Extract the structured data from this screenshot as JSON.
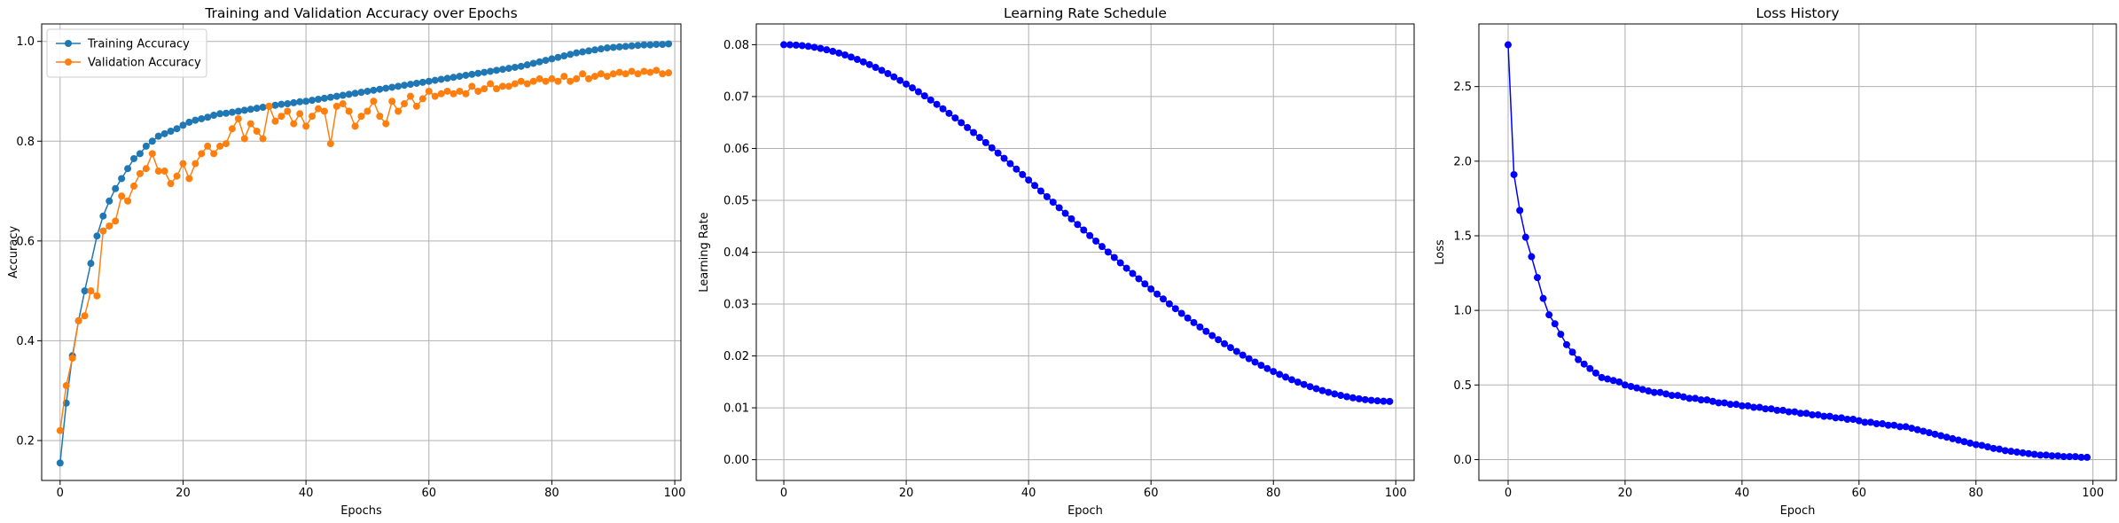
{
  "chart_data": [
    {
      "type": "line",
      "title": "Training and Validation Accuracy over Epochs",
      "xlabel": "Epochs",
      "ylabel": "Accuracy",
      "xlim": [
        -3,
        101
      ],
      "ylim": [
        0.12,
        1.035
      ],
      "xticks": [
        0,
        20,
        40,
        60,
        80,
        100
      ],
      "yticks": [
        0.2,
        0.4,
        0.6,
        0.8,
        1.0
      ],
      "xtick_labels": [
        "0",
        "20",
        "40",
        "60",
        "80",
        "100"
      ],
      "ytick_labels": [
        "0.2",
        "0.4",
        "0.6",
        "0.8",
        "1.0"
      ],
      "grid": true,
      "legend": "upper-left",
      "markers": true,
      "series": [
        {
          "name": "Training Accuracy",
          "color": "#1f77b4",
          "x": [
            0,
            1,
            2,
            3,
            4,
            5,
            6,
            7,
            8,
            9,
            10,
            11,
            12,
            13,
            14,
            15,
            16,
            17,
            18,
            19,
            20,
            21,
            22,
            23,
            24,
            25,
            26,
            27,
            28,
            29,
            30,
            31,
            32,
            33,
            34,
            35,
            36,
            37,
            38,
            39,
            40,
            41,
            42,
            43,
            44,
            45,
            46,
            47,
            48,
            49,
            50,
            51,
            52,
            53,
            54,
            55,
            56,
            57,
            58,
            59,
            60,
            61,
            62,
            63,
            64,
            65,
            66,
            67,
            68,
            69,
            70,
            71,
            72,
            73,
            74,
            75,
            76,
            77,
            78,
            79,
            80,
            81,
            82,
            83,
            84,
            85,
            86,
            87,
            88,
            89,
            90,
            91,
            92,
            93,
            94,
            95,
            96,
            97,
            98,
            99
          ],
          "values": [
            0.155,
            0.275,
            0.37,
            0.44,
            0.5,
            0.555,
            0.61,
            0.65,
            0.68,
            0.705,
            0.725,
            0.745,
            0.765,
            0.775,
            0.79,
            0.8,
            0.81,
            0.815,
            0.82,
            0.825,
            0.832,
            0.838,
            0.842,
            0.845,
            0.848,
            0.852,
            0.855,
            0.856,
            0.858,
            0.86,
            0.862,
            0.864,
            0.866,
            0.868,
            0.87,
            0.872,
            0.874,
            0.875,
            0.877,
            0.879,
            0.88,
            0.882,
            0.884,
            0.886,
            0.888,
            0.89,
            0.892,
            0.894,
            0.896,
            0.898,
            0.9,
            0.902,
            0.904,
            0.906,
            0.908,
            0.91,
            0.912,
            0.914,
            0.916,
            0.918,
            0.92,
            0.922,
            0.924,
            0.926,
            0.928,
            0.93,
            0.932,
            0.934,
            0.936,
            0.938,
            0.94,
            0.942,
            0.944,
            0.946,
            0.948,
            0.95,
            0.953,
            0.956,
            0.959,
            0.962,
            0.965,
            0.968,
            0.971,
            0.974,
            0.977,
            0.979,
            0.981,
            0.983,
            0.985,
            0.987,
            0.988,
            0.989,
            0.99,
            0.991,
            0.992,
            0.993,
            0.993,
            0.994,
            0.994,
            0.995
          ]
        },
        {
          "name": "Validation Accuracy",
          "color": "#ff7f0e",
          "x": [
            0,
            1,
            2,
            3,
            4,
            5,
            6,
            7,
            8,
            9,
            10,
            11,
            12,
            13,
            14,
            15,
            16,
            17,
            18,
            19,
            20,
            21,
            22,
            23,
            24,
            25,
            26,
            27,
            28,
            29,
            30,
            31,
            32,
            33,
            34,
            35,
            36,
            37,
            38,
            39,
            40,
            41,
            42,
            43,
            44,
            45,
            46,
            47,
            48,
            49,
            50,
            51,
            52,
            53,
            54,
            55,
            56,
            57,
            58,
            59,
            60,
            61,
            62,
            63,
            64,
            65,
            66,
            67,
            68,
            69,
            70,
            71,
            72,
            73,
            74,
            75,
            76,
            77,
            78,
            79,
            80,
            81,
            82,
            83,
            84,
            85,
            86,
            87,
            88,
            89,
            90,
            91,
            92,
            93,
            94,
            95,
            96,
            97,
            98,
            99
          ],
          "values": [
            0.22,
            0.31,
            0.365,
            0.44,
            0.45,
            0.5,
            0.49,
            0.62,
            0.63,
            0.64,
            0.69,
            0.68,
            0.71,
            0.735,
            0.745,
            0.775,
            0.74,
            0.74,
            0.715,
            0.73,
            0.755,
            0.725,
            0.755,
            0.775,
            0.79,
            0.775,
            0.79,
            0.795,
            0.825,
            0.845,
            0.805,
            0.835,
            0.82,
            0.805,
            0.87,
            0.84,
            0.85,
            0.86,
            0.835,
            0.855,
            0.83,
            0.85,
            0.865,
            0.86,
            0.795,
            0.87,
            0.875,
            0.86,
            0.83,
            0.85,
            0.86,
            0.88,
            0.85,
            0.835,
            0.88,
            0.86,
            0.875,
            0.89,
            0.87,
            0.885,
            0.9,
            0.89,
            0.895,
            0.9,
            0.895,
            0.9,
            0.895,
            0.91,
            0.9,
            0.905,
            0.915,
            0.905,
            0.91,
            0.91,
            0.915,
            0.92,
            0.915,
            0.92,
            0.925,
            0.92,
            0.925,
            0.92,
            0.93,
            0.92,
            0.925,
            0.935,
            0.925,
            0.93,
            0.935,
            0.93,
            0.935,
            0.938,
            0.935,
            0.94,
            0.935,
            0.94,
            0.938,
            0.942,
            0.935,
            0.937
          ]
        }
      ]
    },
    {
      "type": "line",
      "title": "Learning Rate Schedule",
      "xlabel": "Epoch",
      "ylabel": "Learning Rate",
      "xlim": [
        -4.5,
        103
      ],
      "ylim": [
        -0.004,
        0.084
      ],
      "xticks": [
        0,
        20,
        40,
        60,
        80,
        100
      ],
      "yticks": [
        0.0,
        0.01,
        0.02,
        0.03,
        0.04,
        0.05,
        0.06,
        0.07,
        0.08
      ],
      "xtick_labels": [
        "0",
        "20",
        "40",
        "60",
        "80",
        "100"
      ],
      "ytick_labels": [
        "0.00",
        "0.01",
        "0.02",
        "0.03",
        "0.04",
        "0.05",
        "0.06",
        "0.07",
        "0.08"
      ],
      "grid": true,
      "markers": true,
      "series": [
        {
          "color": "#0000ff",
          "x": [
            0,
            1,
            2,
            3,
            4,
            5,
            6,
            7,
            8,
            9,
            10,
            11,
            12,
            13,
            14,
            15,
            16,
            17,
            18,
            19,
            20,
            21,
            22,
            23,
            24,
            25,
            26,
            27,
            28,
            29,
            30,
            31,
            32,
            33,
            34,
            35,
            36,
            37,
            38,
            39,
            40,
            41,
            42,
            43,
            44,
            45,
            46,
            47,
            48,
            49,
            50,
            51,
            52,
            53,
            54,
            55,
            56,
            57,
            58,
            59,
            60,
            61,
            62,
            63,
            64,
            65,
            66,
            67,
            68,
            69,
            70,
            71,
            72,
            73,
            74,
            75,
            76,
            77,
            78,
            79,
            80,
            81,
            82,
            83,
            84,
            85,
            86,
            87,
            88,
            89,
            90,
            91,
            92,
            93,
            94,
            95,
            96,
            97,
            98,
            99
          ],
          "values": [
            0.08,
            0.07998,
            0.07992,
            0.07982,
            0.07968,
            0.0795,
            0.07928,
            0.07902,
            0.07872,
            0.07839,
            0.07802,
            0.07761,
            0.07716,
            0.07668,
            0.07617,
            0.07562,
            0.07504,
            0.07443,
            0.07378,
            0.07311,
            0.07241,
            0.07168,
            0.07092,
            0.07014,
            0.06933,
            0.0685,
            0.06764,
            0.06677,
            0.06587,
            0.06496,
            0.06402,
            0.06307,
            0.0621,
            0.06112,
            0.06012,
            0.05911,
            0.05809,
            0.05706,
            0.05602,
            0.05497,
            0.05391,
            0.05285,
            0.05178,
            0.05071,
            0.04964,
            0.04857,
            0.04749,
            0.04642,
            0.04534,
            0.04427,
            0.0432,
            0.04214,
            0.04108,
            0.04003,
            0.03898,
            0.03794,
            0.03691,
            0.03589,
            0.03488,
            0.03389,
            0.0329,
            0.03193,
            0.03098,
            0.03004,
            0.02911,
            0.0282,
            0.02731,
            0.02643,
            0.02558,
            0.02474,
            0.02392,
            0.02313,
            0.02235,
            0.0216,
            0.02087,
            0.02016,
            0.01948,
            0.01882,
            0.01819,
            0.01758,
            0.017,
            0.01645,
            0.01592,
            0.01542,
            0.01494,
            0.0145,
            0.01408,
            0.01369,
            0.01332,
            0.01299,
            0.01268,
            0.0124,
            0.01215,
            0.01193,
            0.01174,
            0.01158,
            0.01145,
            0.01135,
            0.01127,
            0.01123
          ]
        }
      ]
    },
    {
      "type": "line",
      "title": "Loss History",
      "xlabel": "Epoch",
      "ylabel": "Loss",
      "xlim": [
        -5,
        104
      ],
      "ylim": [
        -0.14,
        2.92
      ],
      "xticks": [
        0,
        20,
        40,
        60,
        80,
        100
      ],
      "yticks": [
        0.0,
        0.5,
        1.0,
        1.5,
        2.0,
        2.5
      ],
      "xtick_labels": [
        "0",
        "20",
        "40",
        "60",
        "80",
        "100"
      ],
      "ytick_labels": [
        "0.0",
        "0.5",
        "1.0",
        "1.5",
        "2.0",
        "2.5"
      ],
      "grid": true,
      "markers": true,
      "series": [
        {
          "color": "#0000ff",
          "x": [
            0,
            1,
            2,
            3,
            4,
            5,
            6,
            7,
            8,
            9,
            10,
            11,
            12,
            13,
            14,
            15,
            16,
            17,
            18,
            19,
            20,
            21,
            22,
            23,
            24,
            25,
            26,
            27,
            28,
            29,
            30,
            31,
            32,
            33,
            34,
            35,
            36,
            37,
            38,
            39,
            40,
            41,
            42,
            43,
            44,
            45,
            46,
            47,
            48,
            49,
            50,
            51,
            52,
            53,
            54,
            55,
            56,
            57,
            58,
            59,
            60,
            61,
            62,
            63,
            64,
            65,
            66,
            67,
            68,
            69,
            70,
            71,
            72,
            73,
            74,
            75,
            76,
            77,
            78,
            79,
            80,
            81,
            82,
            83,
            84,
            85,
            86,
            87,
            88,
            89,
            90,
            91,
            92,
            93,
            94,
            95,
            96,
            97,
            98,
            99
          ],
          "values": [
            2.78,
            1.91,
            1.67,
            1.49,
            1.36,
            1.22,
            1.08,
            0.97,
            0.91,
            0.84,
            0.77,
            0.72,
            0.67,
            0.64,
            0.61,
            0.58,
            0.55,
            0.54,
            0.53,
            0.52,
            0.5,
            0.49,
            0.48,
            0.47,
            0.46,
            0.45,
            0.45,
            0.44,
            0.43,
            0.43,
            0.42,
            0.41,
            0.41,
            0.4,
            0.4,
            0.39,
            0.38,
            0.38,
            0.37,
            0.37,
            0.36,
            0.36,
            0.35,
            0.35,
            0.34,
            0.34,
            0.33,
            0.33,
            0.32,
            0.32,
            0.31,
            0.31,
            0.3,
            0.3,
            0.29,
            0.29,
            0.28,
            0.28,
            0.27,
            0.27,
            0.26,
            0.25,
            0.25,
            0.24,
            0.24,
            0.23,
            0.23,
            0.22,
            0.22,
            0.21,
            0.2,
            0.19,
            0.18,
            0.17,
            0.16,
            0.15,
            0.14,
            0.13,
            0.12,
            0.11,
            0.1,
            0.095,
            0.085,
            0.075,
            0.07,
            0.06,
            0.055,
            0.05,
            0.045,
            0.04,
            0.035,
            0.03,
            0.03,
            0.025,
            0.025,
            0.02,
            0.02,
            0.02,
            0.015,
            0.015
          ]
        }
      ]
    }
  ]
}
